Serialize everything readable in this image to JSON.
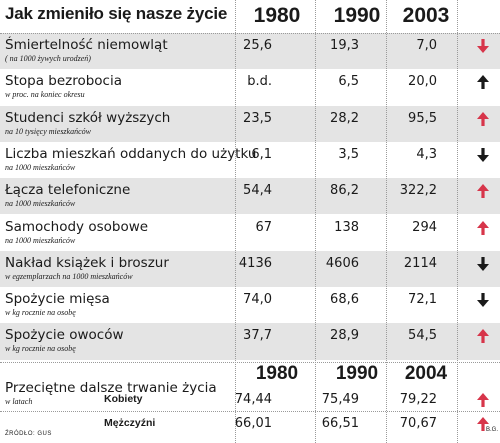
{
  "chart_data": {
    "type": "table",
    "title": "Jak zmieniło się nasze życie",
    "columns": [
      "1980",
      "1990",
      "2003"
    ],
    "colors": {
      "up_red": "#d7354a",
      "up_black": "#1a1a1a",
      "down_red": "#d7354a",
      "down_black": "#1a1a1a",
      "shade": "#e4e4e4"
    },
    "rows": [
      {
        "label": "Śmiertelność niemowląt",
        "unit": "( na 1000 żywych urodzeń)",
        "values": [
          "25,6",
          "19,3",
          "7,0"
        ],
        "trend": "down",
        "arrow_color": "red"
      },
      {
        "label": "Stopa bezrobocia",
        "unit": "w proc. na  koniec okresu",
        "values": [
          "b.d.",
          "6,5",
          "20,0"
        ],
        "trend": "up",
        "arrow_color": "black"
      },
      {
        "label": "Studenci szkół wyższych",
        "unit": "na 10 tysięcy mieszkańców",
        "values": [
          "23,5",
          "28,2",
          "95,5"
        ],
        "trend": "up",
        "arrow_color": "red"
      },
      {
        "label": "Liczba mieszkań oddanych do użytku",
        "unit": "na 1000 mieszkańców",
        "values": [
          "6,1",
          "3,5",
          "4,3"
        ],
        "trend": "down",
        "arrow_color": "black"
      },
      {
        "label": "Łącza telefoniczne",
        "unit": "na 1000 mieszkańców",
        "values": [
          "54,4",
          "86,2",
          "322,2"
        ],
        "trend": "up",
        "arrow_color": "red"
      },
      {
        "label": "Samochody osobowe",
        "unit": "na 1000 mieszkańców",
        "values": [
          "67",
          "138",
          "294"
        ],
        "trend": "up",
        "arrow_color": "red"
      },
      {
        "label": "Nakład książek i broszur",
        "unit": "w egzemplarzach na 1000 mieszkańców",
        "values": [
          "4136",
          "4606",
          "2114"
        ],
        "trend": "down",
        "arrow_color": "black"
      },
      {
        "label": "Spożycie mięsa",
        "unit": "w kg rocznie na osobę",
        "values": [
          "74,0",
          "68,6",
          "72,1"
        ],
        "trend": "down",
        "arrow_color": "black"
      },
      {
        "label": "Spożycie owoców",
        "unit": "w kg rocznie na osobę",
        "values": [
          "37,7",
          "28,9",
          "54,5"
        ],
        "trend": "up",
        "arrow_color": "red"
      }
    ],
    "life_expectancy": {
      "label": "Przeciętne dalsze trwanie życia",
      "unit": "w latach",
      "columns": [
        "1980",
        "1990",
        "2004"
      ],
      "rows": [
        {
          "label": "Kobiety",
          "values": [
            "74,44",
            "75,49",
            "79,22"
          ],
          "trend": "up",
          "arrow_color": "red"
        },
        {
          "label": "Mężczyźni",
          "values": [
            "66,01",
            "66,51",
            "70,67"
          ],
          "trend": "up",
          "arrow_color": "red"
        }
      ]
    },
    "source": "ŹRÓDŁO: GUS",
    "credit": "B.G."
  }
}
